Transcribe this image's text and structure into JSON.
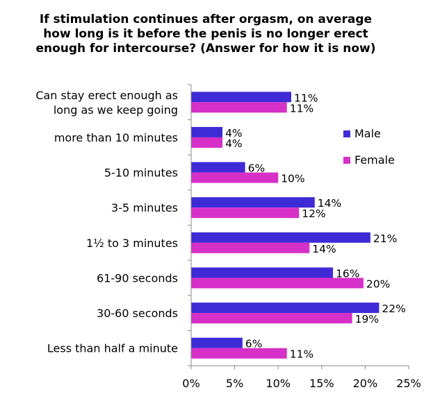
{
  "chart_data": {
    "type": "bar",
    "orientation": "horizontal",
    "title": [
      "If stimulation continues after orgasm, on average",
      "how long is it before the penis is no longer erect",
      "enough for intercourse? (Answer for how it is now)"
    ],
    "categories": [
      [
        "Can stay erect enough as",
        "long as we keep going"
      ],
      [
        "more than 10 minutes"
      ],
      [
        "5-10 minutes"
      ],
      [
        "3-5 minutes"
      ],
      [
        "1½ to 3 minutes"
      ],
      [
        "61-90 seconds"
      ],
      [
        "30-60 seconds"
      ],
      [
        "Less than half a minute"
      ]
    ],
    "series": [
      {
        "name": "Male",
        "color": "#3f2bd6",
        "values": [
          11.5,
          3.6,
          6.2,
          14.2,
          20.6,
          16.3,
          21.6,
          5.9
        ],
        "labels": [
          "11%",
          "4%",
          "6%",
          "14%",
          "21%",
          "16%",
          "22%",
          "6%"
        ]
      },
      {
        "name": "Female",
        "color": "#d630c8",
        "values": [
          11.0,
          3.6,
          10.0,
          12.4,
          13.6,
          19.8,
          18.5,
          11.0
        ],
        "labels": [
          "11%",
          "4%",
          "10%",
          "12%",
          "14%",
          "20%",
          "19%",
          "11%"
        ]
      }
    ],
    "xlim": [
      0,
      25
    ],
    "xticks": [
      "0%",
      "5%",
      "10%",
      "15%",
      "20%",
      "25%"
    ],
    "grid": false,
    "legend": "right"
  }
}
